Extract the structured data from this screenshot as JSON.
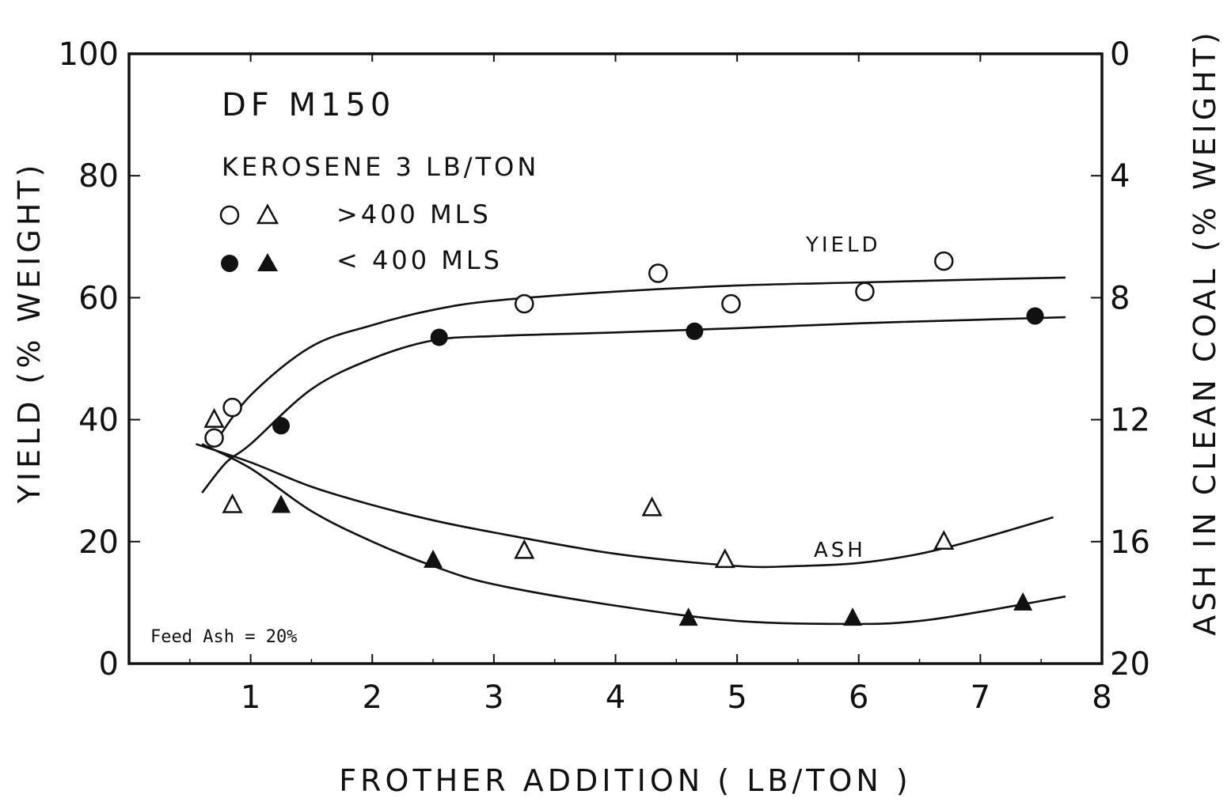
{
  "chart_data": {
    "type": "scatter",
    "title": "DF M150",
    "subtitle": "KEROSENE 3 LB/TON",
    "xlabel": "FROTHER ADDITION ( LB/TON )",
    "ylabel": "YIELD (% WEIGHT)",
    "y2label": "ASH IN CLEAN COAL (% WEIGHT)",
    "xlim": [
      0,
      8
    ],
    "ylim": [
      0,
      100
    ],
    "y2lim": [
      20,
      0
    ],
    "x_ticks": [
      "1",
      "2",
      "3",
      "4",
      "5",
      "6",
      "7",
      "8"
    ],
    "y_ticks": [
      "0",
      "20",
      "40",
      "60",
      "80",
      "100"
    ],
    "y2_ticks": [
      "20",
      "16",
      "12",
      "8",
      "4",
      "0"
    ],
    "grid": false,
    "legend": {
      "position": "top-left",
      "entries": [
        {
          "symbols": "open",
          "label": ">400 MLS"
        },
        {
          "symbols": "filled",
          "label": "< 400 MLS"
        }
      ]
    },
    "annotations": {
      "yield_label": "YIELD",
      "ash_label": "ASH",
      "feed_ash": "Feed Ash = 20%"
    },
    "series": [
      {
        "name": ">400 MLS",
        "kind": "yield",
        "axis": "left",
        "marker": "circle-open",
        "points": [
          [
            0.7,
            37
          ],
          [
            0.85,
            42
          ],
          [
            3.25,
            59
          ],
          [
            4.35,
            64
          ],
          [
            4.95,
            59
          ],
          [
            6.05,
            61
          ],
          [
            6.7,
            66
          ]
        ],
        "curve": [
          [
            0.7,
            36
          ],
          [
            1.0,
            44
          ],
          [
            1.5,
            52
          ],
          [
            2.0,
            55.5
          ],
          [
            2.5,
            58
          ],
          [
            3.0,
            59.5
          ],
          [
            4.0,
            61
          ],
          [
            5.0,
            62
          ],
          [
            6.0,
            62.5
          ],
          [
            7.0,
            63
          ],
          [
            7.7,
            63.3
          ]
        ]
      },
      {
        "name": "< 400 MLS",
        "kind": "yield",
        "axis": "left",
        "marker": "circle-filled",
        "points": [
          [
            1.25,
            39
          ],
          [
            2.55,
            53.5
          ],
          [
            4.65,
            54.5
          ],
          [
            7.45,
            57
          ]
        ],
        "curve": [
          [
            0.6,
            28
          ],
          [
            0.8,
            33
          ],
          [
            1.0,
            36
          ],
          [
            1.5,
            45
          ],
          [
            2.0,
            50
          ],
          [
            2.5,
            53
          ],
          [
            3.0,
            53.7
          ],
          [
            4.0,
            54.3
          ],
          [
            5.0,
            55
          ],
          [
            6.0,
            55.8
          ],
          [
            7.0,
            56.4
          ],
          [
            7.7,
            56.8
          ]
        ]
      },
      {
        "name": ">400 MLS",
        "kind": "ash",
        "axis": "right",
        "marker": "triangle-open",
        "points": [
          [
            0.7,
            12.0
          ],
          [
            0.85,
            14.8
          ],
          [
            3.25,
            16.3
          ],
          [
            4.3,
            14.9
          ],
          [
            4.9,
            16.6
          ],
          [
            6.7,
            16.0
          ]
        ],
        "curve": [
          [
            0.55,
            12.8
          ],
          [
            1.0,
            13.4
          ],
          [
            1.5,
            14.2
          ],
          [
            2.0,
            14.8
          ],
          [
            2.5,
            15.3
          ],
          [
            3.0,
            15.7
          ],
          [
            4.0,
            16.4
          ],
          [
            5.0,
            16.8
          ],
          [
            5.5,
            16.8
          ],
          [
            6.0,
            16.7
          ],
          [
            6.5,
            16.4
          ],
          [
            7.0,
            15.9
          ],
          [
            7.6,
            15.2
          ]
        ]
      },
      {
        "name": "< 400 MLS",
        "kind": "ash",
        "axis": "right",
        "marker": "triangle-filled",
        "points": [
          [
            1.25,
            14.8
          ],
          [
            2.5,
            16.6
          ],
          [
            4.6,
            18.5
          ],
          [
            5.95,
            18.5
          ],
          [
            7.35,
            18.0
          ]
        ],
        "curve": [
          [
            0.6,
            12.8
          ],
          [
            1.0,
            13.6
          ],
          [
            1.5,
            15.0
          ],
          [
            2.0,
            16.0
          ],
          [
            2.5,
            16.8
          ],
          [
            3.0,
            17.4
          ],
          [
            4.0,
            18.1
          ],
          [
            5.0,
            18.6
          ],
          [
            6.0,
            18.7
          ],
          [
            6.5,
            18.6
          ],
          [
            7.0,
            18.3
          ],
          [
            7.7,
            17.8
          ]
        ]
      }
    ]
  }
}
